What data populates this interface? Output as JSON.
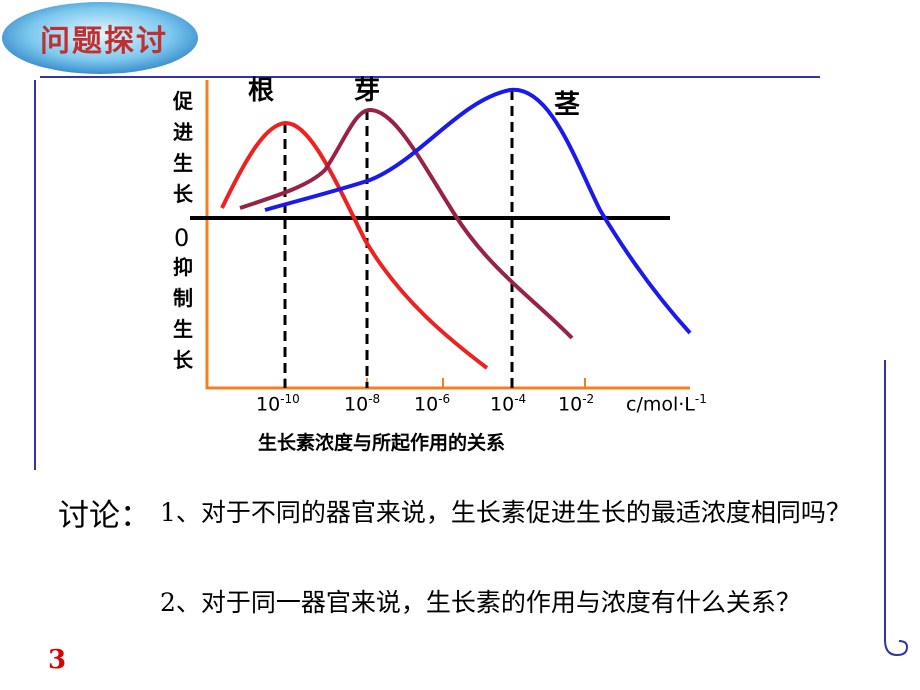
{
  "header": {
    "title": "问题探讨"
  },
  "figure": {
    "curves": [
      {
        "label": "根"
      },
      {
        "label": "芽"
      },
      {
        "label": "茎"
      }
    ],
    "y_axis": {
      "promote": "促进生长",
      "zero": "0",
      "inhibit": "抑制生长"
    },
    "x_axis": {
      "ticks": [
        {
          "base": "10",
          "exp": "-10"
        },
        {
          "base": "10",
          "exp": "-8"
        },
        {
          "base": "10",
          "exp": "-6"
        },
        {
          "base": "10",
          "exp": "-4"
        },
        {
          "base": "10",
          "exp": "-2"
        }
      ],
      "unit": {
        "text": "c/mol·L",
        "exp": "-1"
      }
    },
    "caption": "生长素浓度与所起作用的关系"
  },
  "discussion": {
    "label": "讨论：",
    "questions": [
      "1、对于不同的器官来说，生长素促进生长的最适浓度相同吗？",
      "2、对于同一器官来说，生长素的作用与浓度有什么关系？"
    ]
  },
  "page_number": "3"
}
